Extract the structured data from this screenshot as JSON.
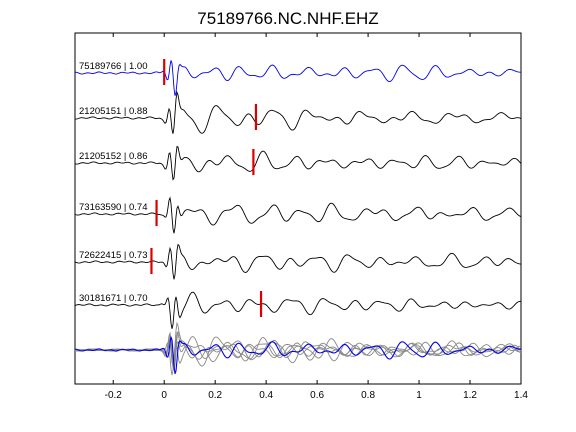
{
  "chart_data": {
    "type": "line",
    "title": "75189766.NC.NHF.EHZ",
    "xlabel": "",
    "ylabel": "",
    "xlim": [
      -0.35,
      1.4
    ],
    "x_ticks": [
      "-0.2",
      "0",
      "0.2",
      "0.4",
      "0.6",
      "0.8",
      "1",
      "1.2",
      "1.4"
    ],
    "x_tick_values": [
      -0.2,
      0,
      0.2,
      0.4,
      0.6,
      0.8,
      1.0,
      1.2,
      1.4
    ],
    "grid": false,
    "colors": {
      "master": "#0000ee",
      "trace": "#000000",
      "pick": "#dd0000",
      "overlay": "#888888"
    },
    "traces": [
      {
        "label": "75189766 | 1.00",
        "id": "75189766",
        "cc": "1.00",
        "pick": 0.0,
        "color": "#0000ee",
        "seed": 3
      },
      {
        "label": "21205151 | 0.88",
        "id": "21205151",
        "cc": "0.88",
        "pick": 0.36,
        "color": "#000000",
        "seed": 11
      },
      {
        "label": "21205152 | 0.86",
        "id": "21205152",
        "cc": "0.86",
        "pick": 0.35,
        "color": "#000000",
        "seed": 17
      },
      {
        "label": "73163590 | 0.74",
        "id": "73163590",
        "cc": "0.74",
        "pick": -0.03,
        "color": "#000000",
        "seed": 23
      },
      {
        "label": "72622415 | 0.73",
        "id": "72622415",
        "cc": "0.73",
        "pick": -0.05,
        "color": "#000000",
        "seed": 29
      },
      {
        "label": "30181671 | 0.70",
        "id": "30181671",
        "cc": "0.70",
        "pick": 0.38,
        "color": "#000000",
        "seed": 37
      }
    ]
  }
}
